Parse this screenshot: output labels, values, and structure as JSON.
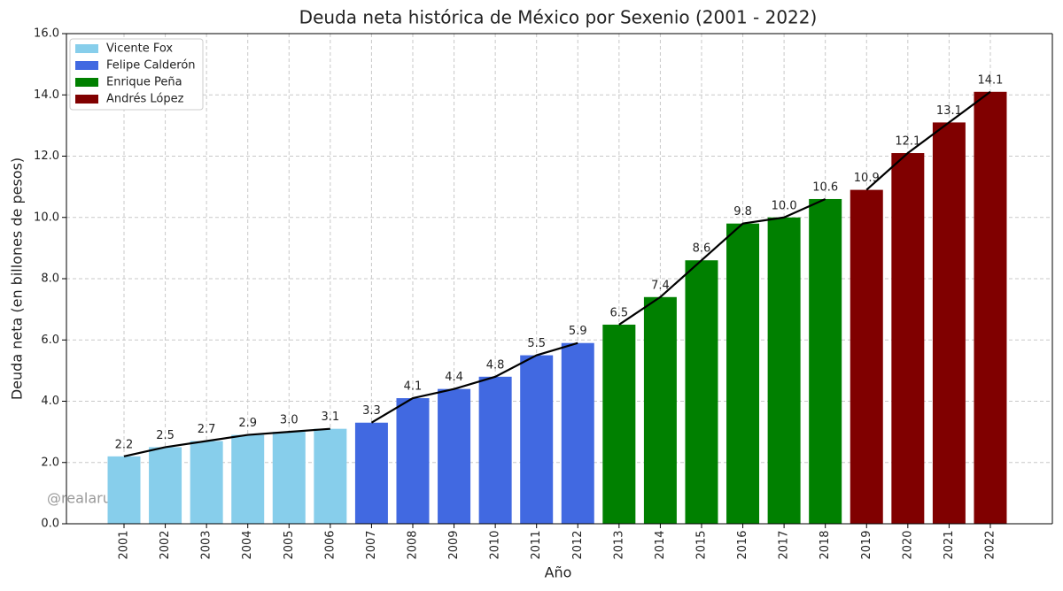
{
  "chart_data": {
    "type": "bar",
    "title": "Deuda neta histórica de México por Sexenio (2001 - 2022)",
    "x_label": "Año",
    "y_label": "Deuda neta (en billones de pesos)",
    "watermark": "@realarutorh",
    "categories": [
      "2001",
      "2002",
      "2003",
      "2004",
      "2005",
      "2006",
      "2007",
      "2008",
      "2009",
      "2010",
      "2011",
      "2012",
      "2013",
      "2014",
      "2015",
      "2016",
      "2017",
      "2018",
      "2019",
      "2020",
      "2021",
      "2022"
    ],
    "series": [
      {
        "name": "Vicente Fox",
        "color": "#87ceeb",
        "values": [
          2.2,
          2.5,
          2.7,
          2.9,
          3.0,
          3.1,
          null,
          null,
          null,
          null,
          null,
          null,
          null,
          null,
          null,
          null,
          null,
          null,
          null,
          null,
          null,
          null
        ],
        "value_labels": [
          "2.2",
          "2.5",
          "2.7",
          "2.9",
          "3.0",
          "3.1",
          null,
          null,
          null,
          null,
          null,
          null,
          null,
          null,
          null,
          null,
          null,
          null,
          null,
          null,
          null,
          null
        ]
      },
      {
        "name": "Felipe Calderón",
        "color": "#4169e1",
        "values": [
          null,
          null,
          null,
          null,
          null,
          null,
          3.3,
          4.1,
          4.4,
          4.8,
          5.5,
          5.9,
          null,
          null,
          null,
          null,
          null,
          null,
          null,
          null,
          null,
          null
        ],
        "value_labels": [
          null,
          null,
          null,
          null,
          null,
          null,
          "3.3",
          "4.1",
          "4.4",
          "4.8",
          "5.5",
          "5.9",
          null,
          null,
          null,
          null,
          null,
          null,
          null,
          null,
          null,
          null
        ]
      },
      {
        "name": "Enrique Peña",
        "color": "#008000",
        "values": [
          null,
          null,
          null,
          null,
          null,
          null,
          null,
          null,
          null,
          null,
          null,
          null,
          6.5,
          7.4,
          8.6,
          9.8,
          10.0,
          10.6,
          null,
          null,
          null,
          null
        ],
        "value_labels": [
          null,
          null,
          null,
          null,
          null,
          null,
          null,
          null,
          null,
          null,
          null,
          null,
          "6.5",
          "7.4",
          "8.6",
          "9.8",
          "10.0",
          "10.6",
          null,
          null,
          null,
          null
        ]
      },
      {
        "name": "Andrés López",
        "color": "#800000",
        "values": [
          null,
          null,
          null,
          null,
          null,
          null,
          null,
          null,
          null,
          null,
          null,
          null,
          null,
          null,
          null,
          null,
          null,
          null,
          10.9,
          12.1,
          13.1,
          14.1
        ],
        "value_labels": [
          null,
          null,
          null,
          null,
          null,
          null,
          null,
          null,
          null,
          null,
          null,
          null,
          null,
          null,
          null,
          null,
          null,
          null,
          "10.9",
          "12.1",
          "13.1",
          "14.1"
        ]
      }
    ],
    "ylim": [
      0,
      16
    ],
    "yticks": [
      {
        "value": 0,
        "label": "0.0"
      },
      {
        "value": 2,
        "label": "2.0"
      },
      {
        "value": 4,
        "label": "4.0"
      },
      {
        "value": 6,
        "label": "6.0"
      },
      {
        "value": 8,
        "label": "8.0"
      },
      {
        "value": 10,
        "label": "10.0"
      },
      {
        "value": 12,
        "label": "12.0"
      },
      {
        "value": 14,
        "label": "14.0"
      },
      {
        "value": 16,
        "label": "16.0"
      }
    ],
    "grid": true,
    "legend": "upper left",
    "trend_line_color": "#000000"
  }
}
